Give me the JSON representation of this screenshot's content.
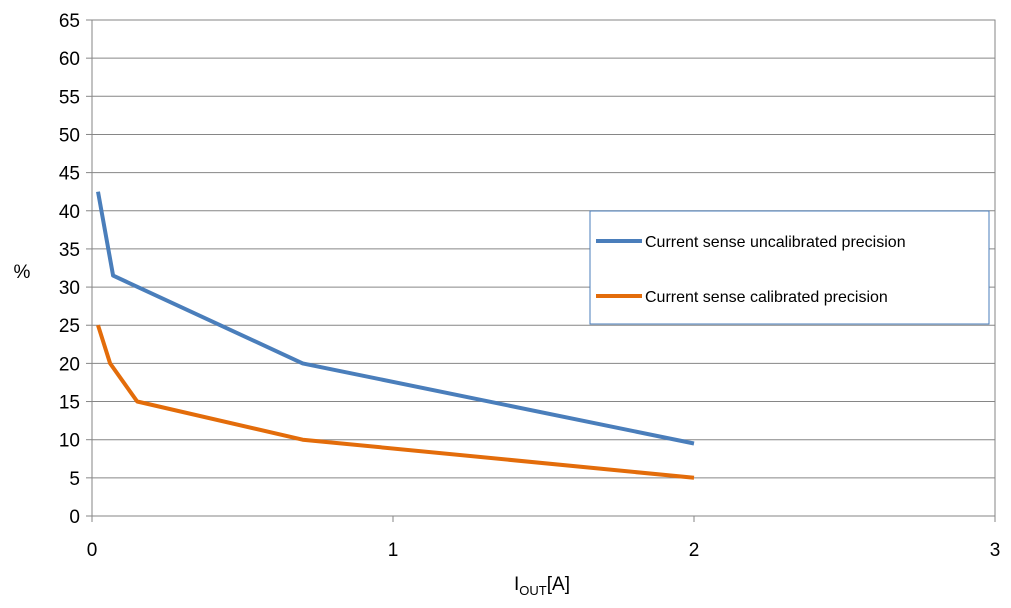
{
  "chart_data": {
    "type": "line",
    "xlabel": {
      "main": "I",
      "sub": "OUT",
      "unit": "[A]"
    },
    "ylabel": "%",
    "xlim": [
      0,
      3
    ],
    "ylim": [
      0,
      65
    ],
    "x_ticks": [
      "0",
      "1",
      "2",
      "3"
    ],
    "y_ticks": [
      "0",
      "5",
      "10",
      "15",
      "20",
      "25",
      "30",
      "35",
      "40",
      "45",
      "50",
      "55",
      "60",
      "65"
    ],
    "grid": "horizontal",
    "legend_position": "right",
    "series": [
      {
        "name": "Current sense uncalibrated precision",
        "color": "#4a7ebb",
        "x": [
          0.02,
          0.07,
          0.7,
          2.0
        ],
        "y": [
          42.5,
          31.5,
          20,
          9.5
        ]
      },
      {
        "name": "Current sense calibrated precision",
        "color": "#e36c0a",
        "x": [
          0.02,
          0.06,
          0.15,
          0.7,
          2.0
        ],
        "y": [
          25,
          20,
          15,
          10,
          5
        ]
      }
    ]
  }
}
